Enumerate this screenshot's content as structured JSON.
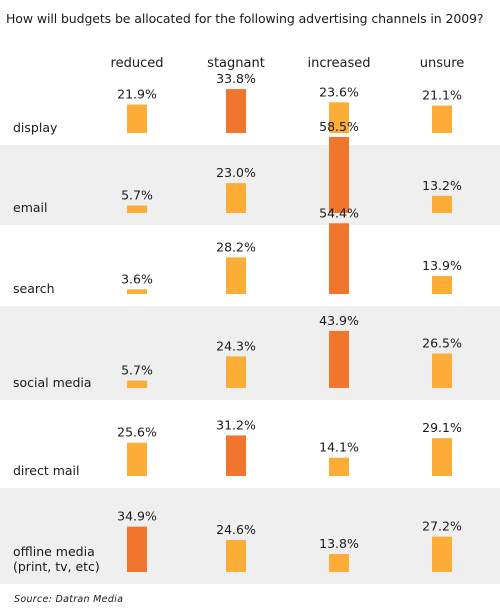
{
  "chart_data": {
    "type": "bar",
    "title": "How will budgets be allocated for the following advertising channels in 2009?",
    "columns": [
      "reduced",
      "stagnant",
      "increased",
      "unsure"
    ],
    "rows": [
      {
        "label": [
          "display"
        ],
        "values": [
          21.9,
          33.8,
          23.6,
          21.1
        ],
        "highlight": 1
      },
      {
        "label": [
          "email"
        ],
        "values": [
          5.7,
          23.0,
          58.5,
          13.2
        ],
        "highlight": 2
      },
      {
        "label": [
          "search"
        ],
        "values": [
          3.6,
          28.2,
          54.4,
          13.9
        ],
        "highlight": 2
      },
      {
        "label": [
          "social media"
        ],
        "values": [
          5.7,
          24.3,
          43.9,
          26.5
        ],
        "highlight": 2
      },
      {
        "label": [
          "direct mail"
        ],
        "values": [
          25.6,
          31.2,
          14.1,
          29.1
        ],
        "highlight": 1
      },
      {
        "label": [
          "offline media",
          "(print, tv, etc)"
        ],
        "values": [
          34.9,
          24.6,
          13.8,
          27.2
        ],
        "highlight": 0
      }
    ],
    "unit": "%",
    "source": "Source:  Datran Media",
    "colors": {
      "normal": "#fbad37",
      "highlight": "#f0752d",
      "band": "#efefef"
    }
  }
}
